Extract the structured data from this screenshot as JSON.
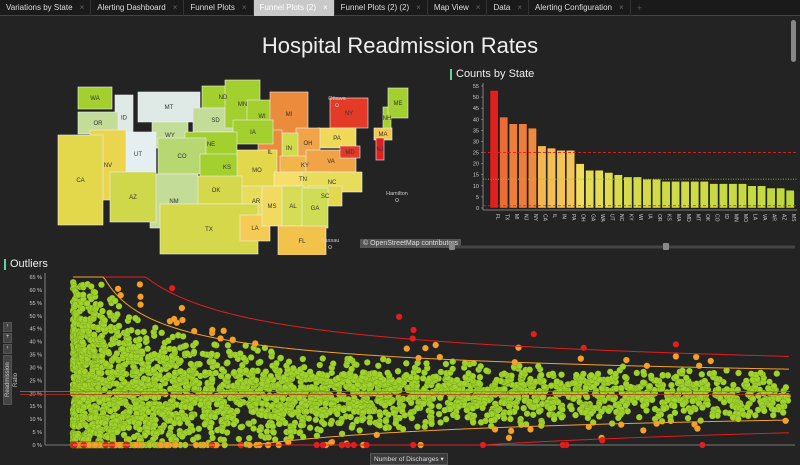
{
  "tabs": [
    {
      "label": "Variations by State"
    },
    {
      "label": "Alerting Dashboard"
    },
    {
      "label": "Funnel Plots"
    },
    {
      "label": "Funnel Plots (2)",
      "active": true
    },
    {
      "label": "Funnel Plots (2) (2)"
    },
    {
      "label": "Map View"
    },
    {
      "label": "Data"
    },
    {
      "label": "Alerting Configuration"
    }
  ],
  "close_glyph": "×",
  "add_tab_glyph": "+",
  "title": "Hospital Readmission Rates",
  "map": {
    "attribution": "© OpenStreetMap contributors",
    "places": [
      "Ottawa",
      "Hamilton",
      "Nassau"
    ],
    "states": [
      {
        "label": "WA",
        "color": "#a3cf2f"
      },
      {
        "label": "ID",
        "color": "#dfe9e6"
      },
      {
        "label": "MT",
        "color": "#dfe9e6"
      },
      {
        "label": "OR",
        "color": "#c3dc98"
      },
      {
        "label": "WY",
        "color": "#c3dc98"
      },
      {
        "label": "ND",
        "color": "#a3cf2f"
      },
      {
        "label": "SD",
        "color": "#c3dc98"
      },
      {
        "label": "MN",
        "color": "#a3cf2f"
      },
      {
        "label": "WI",
        "color": "#a3cf2f"
      },
      {
        "label": "MI",
        "color": "#ec8b3c"
      },
      {
        "label": "NY",
        "color": "#e33b28"
      },
      {
        "label": "NH",
        "color": "#a3cf2f"
      },
      {
        "label": "ME",
        "color": "#a3cf2f"
      },
      {
        "label": "MA",
        "color": "#f2c94c"
      },
      {
        "label": "PA",
        "color": "#f0d858"
      },
      {
        "label": "NJ",
        "color": "#e01f1f"
      },
      {
        "label": "OH",
        "color": "#f0a447"
      },
      {
        "label": "IN",
        "color": "#cfdc4c"
      },
      {
        "label": "IL",
        "color": "#ec8b3c"
      },
      {
        "label": "IA",
        "color": "#a3cf2f"
      },
      {
        "label": "NE",
        "color": "#a3cf2f"
      },
      {
        "label": "UT",
        "color": "#e5eff1"
      },
      {
        "label": "CO",
        "color": "#b7d870"
      },
      {
        "label": "NV",
        "color": "#ecd54e"
      },
      {
        "label": "CA",
        "color": "#e3d84c"
      },
      {
        "label": "KS",
        "color": "#a3cf2f"
      },
      {
        "label": "MO",
        "color": "#e3d84c"
      },
      {
        "label": "KY",
        "color": "#f2b54c"
      },
      {
        "label": "VA",
        "color": "#f0a447"
      },
      {
        "label": "MD",
        "color": "#e23a2a"
      },
      {
        "label": "TN",
        "color": "#f5de6a"
      },
      {
        "label": "NC",
        "color": "#e8dd5a"
      },
      {
        "label": "SC",
        "color": "#e3d84c"
      },
      {
        "label": "AR",
        "color": "#e8dd5a"
      },
      {
        "label": "OK",
        "color": "#d4d84a"
      },
      {
        "label": "NM",
        "color": "#c3dc98"
      },
      {
        "label": "AZ",
        "color": "#cfd84a"
      },
      {
        "label": "TX",
        "color": "#d4d84a"
      },
      {
        "label": "LA",
        "color": "#f4cc55"
      },
      {
        "label": "MS",
        "color": "#f2da60"
      },
      {
        "label": "AL",
        "color": "#d6dc55"
      },
      {
        "label": "GA",
        "color": "#cfdc55"
      },
      {
        "label": "FL",
        "color": "#f2c24a"
      }
    ]
  },
  "counts": {
    "title": "Counts by State"
  },
  "outliers": {
    "title": "Outliers",
    "y_axis_button": "Readmission Ratio",
    "x_axis_button": "Number of Discharges",
    "side_glyphs": [
      "›",
      "+",
      "›"
    ],
    "dropdown_glyph": "▾"
  },
  "chart_data": [
    {
      "type": "bar",
      "title": "Counts by State",
      "categories": [
        "FL",
        "TX",
        "MI",
        "NJ",
        "NY",
        "CA",
        "IL",
        "IN",
        "PA",
        "OH",
        "GA",
        "WA",
        "UT",
        "NC",
        "KY",
        "WI",
        "IA",
        "OR",
        "KS",
        "MA",
        "MD",
        "MT",
        "OK",
        "CO",
        "ID",
        "MN",
        "MO",
        "LA",
        "VA",
        "AR",
        "AZ",
        "MS"
      ],
      "values": [
        53,
        41,
        38,
        38,
        36,
        28,
        27,
        26,
        26,
        20,
        17,
        17,
        16,
        15,
        14,
        14,
        13,
        13,
        12,
        12,
        12,
        12,
        12,
        11,
        11,
        11,
        11,
        10,
        10,
        9,
        9,
        8
      ],
      "ylim": [
        0,
        55
      ],
      "yticks": [
        0,
        5,
        10,
        15,
        20,
        25,
        30,
        35,
        40,
        45,
        50,
        55
      ],
      "reference_lines": [
        {
          "value": 25,
          "color": "#e02020",
          "style": "dashed"
        },
        {
          "value": 13,
          "color": "#7ed320",
          "style": "dotted"
        },
        {
          "value": 1,
          "color": "#e02020",
          "style": "dashed"
        }
      ],
      "bar_colors": {
        "high": "#e01f1f",
        "mid": "#f5a84a",
        "low": "#bcd83a"
      }
    },
    {
      "type": "scatter",
      "title": "Outliers",
      "xlabel": "Number of Discharges",
      "ylabel": "Readmission Ratio",
      "ylim": [
        0,
        65
      ],
      "yticks": [
        "0 %",
        "5 %",
        "10 %",
        "15 %",
        "20 %",
        "25 %",
        "30 %",
        "35 %",
        "40 %",
        "45 %",
        "50 %",
        "55 %",
        "60 %",
        "65 %"
      ],
      "mean": 19.5,
      "categories_colors": {
        "within": "#9fd22a",
        "warning": "#f5a02a",
        "outlier": "#e01f1f"
      }
    }
  ]
}
